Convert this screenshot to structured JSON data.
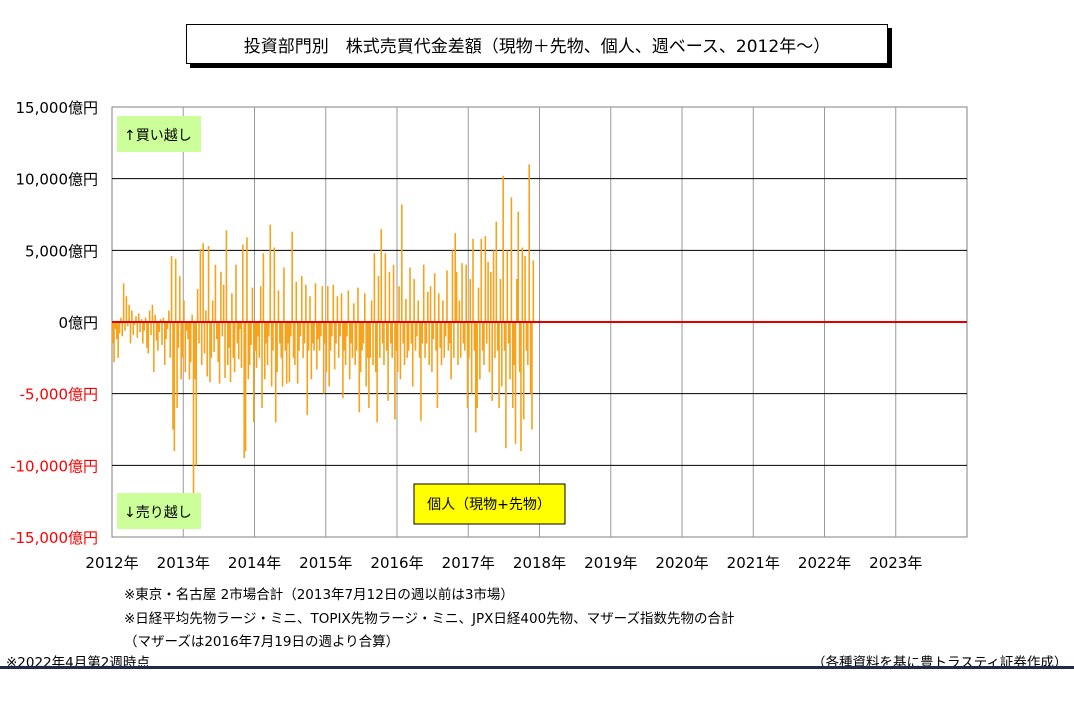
{
  "title": "投資部門別　株式売買代金差額（現物＋先物、個人、週ベース、2012年～）",
  "notes": {
    "market": "※東京・名古屋 2市場合計（2013年7月12日の週以前は3市場）",
    "futures": "※日経平均先物ラージ・ミニ、TOPIX先物ラージ・ミニ、JPX日経400先物、マザーズ指数先物の合計",
    "mothers": "（マザーズは2016年7月19日の週より合算）",
    "as_of": "※2022年4月第2週時点",
    "source": "（各種資料を基に豊トラスティ証券作成）"
  },
  "chart_data": {
    "type": "bar",
    "title": "",
    "xlabel": "",
    "ylabel": "",
    "ylim": [
      -15000,
      15000
    ],
    "yticks": [
      15000,
      10000,
      5000,
      0,
      -5000,
      -10000,
      -15000
    ],
    "ytick_labels": [
      "15,000億円",
      "10,000億円",
      "5,000億円",
      "0億円",
      "-5,000億円",
      "-10,000億円",
      "-15,000億円"
    ],
    "xlim": [
      2012,
      2024
    ],
    "xticks": [
      2012,
      2013,
      2014,
      2015,
      2016,
      2017,
      2018,
      2019,
      2020,
      2021,
      2022,
      2023
    ],
    "xtick_labels": [
      "2012年",
      "2013年",
      "2014年",
      "2015年",
      "2016年",
      "2017年",
      "2018年",
      "2019年",
      "2020年",
      "2021年",
      "2022年",
      "2023年"
    ],
    "grid": true,
    "annotations": {
      "buy": "↑買い越し",
      "sell": "↓売り越し",
      "series_label": "個人（現物+先物）"
    },
    "colors": {
      "bar": "#f7a21b",
      "zero_line": "#e00000",
      "annotation_bg": "#ccff99",
      "label_bg": "#ffff00",
      "neg_tick": "#ff0000"
    },
    "series": [
      {
        "name": "個人（現物+先物）",
        "x_start": 2012.0,
        "x_step": 0.01923,
        "values": [
          -1500,
          -2800,
          -500,
          -1200,
          -2500,
          -800,
          300,
          -1000,
          2700,
          -600,
          1800,
          -300,
          1200,
          -1500,
          800,
          -900,
          -200,
          400,
          -1100,
          600,
          -700,
          200,
          -1500,
          -600,
          300,
          -1800,
          -2200,
          800,
          -900,
          1200,
          -3500,
          500,
          -1300,
          -2000,
          -700,
          200,
          -1600,
          300,
          -3000,
          -1200,
          -500,
          800,
          -2500,
          4600,
          -7500,
          -9000,
          4400,
          -6000,
          -1800,
          3200,
          -4000,
          -2500,
          1500,
          -3500,
          -600,
          -1200,
          -4000,
          -2800,
          500,
          -12500,
          -4000,
          -10000,
          2300,
          -1500,
          5100,
          -3000,
          5500,
          -2200,
          800,
          -3800,
          5300,
          -4200,
          -2500,
          1500,
          -2100,
          4000,
          -1200,
          -2800,
          -4300,
          3500,
          -1000,
          2600,
          -3900,
          6400,
          -3000,
          -1800,
          -4200,
          2000,
          -2500,
          -3500,
          4000,
          -1500,
          -2600,
          -500,
          -3200,
          5400,
          -9500,
          -9000,
          5900,
          -4000,
          -3000,
          -1600,
          2400,
          -7000,
          -2000,
          -3200,
          -1000,
          -2500,
          2500,
          -6000,
          4800,
          -4000,
          -1500,
          -3000,
          -1000,
          6800,
          -4500,
          -2000,
          5200,
          -7000,
          -3500,
          2200,
          -1500,
          -2500,
          -4500,
          3800,
          -2000,
          -4300,
          -1500,
          -4200,
          -1000,
          6300,
          -2500,
          -3000,
          2800,
          -4300,
          -2000,
          -1000,
          3200,
          -2500,
          -1500,
          2600,
          -6500,
          -2000,
          1800,
          -4000,
          -1500,
          -2000,
          2700,
          -3300,
          -1200,
          -2000,
          -1000,
          2500,
          -5000,
          -1500,
          -3500,
          2500,
          -4500,
          -2000,
          -1000,
          2600,
          -3300,
          -1500,
          1800,
          -2500,
          -1000,
          2000,
          -5300,
          -2000,
          -3000,
          -1000,
          2200,
          -4000,
          -1500,
          -2500,
          1300,
          -3000,
          -2000,
          2400,
          -6300,
          -3500,
          -2000,
          -1500,
          2000,
          -4500,
          -2500,
          -6000,
          -2500,
          1500,
          -3000,
          4800,
          -3500,
          -7000,
          3200,
          -2500,
          6500,
          -1500,
          -3000,
          4800,
          -2000,
          -5500,
          3500,
          -1500,
          -2500,
          4000,
          -6800,
          -2000,
          -3500,
          2500,
          -4000,
          8200,
          -1500,
          -3000,
          1600,
          -2500,
          -2000,
          3800,
          -1500,
          -4500,
          3000,
          -2000,
          -1000,
          1500,
          -2500,
          -6900,
          -1500,
          4000,
          -2500,
          -1500,
          2100,
          -3000,
          2500,
          -3500,
          -1200,
          3400,
          -2000,
          -6000,
          2000,
          -1800,
          -3000,
          1500,
          -2500,
          -1000,
          3600,
          -2000,
          -1500,
          -4000,
          5000,
          -2500,
          6200,
          3500,
          -3000,
          1500,
          -2500,
          4100,
          -1500,
          -2000,
          4000,
          -6000,
          -2500,
          3000,
          -5000,
          5800,
          -2000,
          -7700,
          -6000,
          2400,
          -4000,
          5800,
          -2000,
          -3000,
          6000,
          -1500,
          4200,
          -3500,
          3500,
          -5500,
          5000,
          -2500,
          7000,
          -2000,
          -6000,
          3000,
          -4500,
          10200,
          -2000,
          -8800,
          5000,
          -1500,
          -4000,
          8700,
          -6000,
          -3000,
          -8500,
          3000,
          7700,
          -3500,
          -9000,
          5200,
          -6800,
          4600,
          -2000,
          -3000,
          11000,
          -5000,
          -7500,
          4300
        ]
      }
    ]
  }
}
